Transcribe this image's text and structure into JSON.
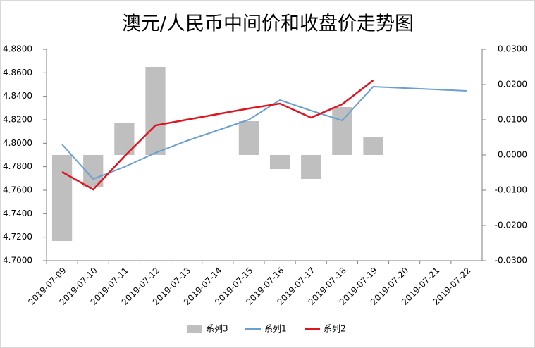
{
  "chart_data": {
    "type": "combo",
    "title": "澳元/人民币中间价和收盘价走势图",
    "categories": [
      "2019-07-09",
      "2019-07-10",
      "2019-07-11",
      "2019-07-12",
      "2019-07-13",
      "2019-07-14",
      "2019-07-15",
      "2019-07-16",
      "2019-07-17",
      "2019-07-18",
      "2019-07-19",
      "2019-07-20",
      "2019-07-21",
      "2019-07-22"
    ],
    "ylim": [
      4.7,
      4.88
    ],
    "yticks": [
      {
        "value": 4.88,
        "label": "4.8800"
      },
      {
        "value": 4.86,
        "label": "4.8600"
      },
      {
        "value": 4.84,
        "label": "4.8400"
      },
      {
        "value": 4.82,
        "label": "4.8200"
      },
      {
        "value": 4.8,
        "label": "4.8000"
      },
      {
        "value": 4.78,
        "label": "4.7800"
      },
      {
        "value": 4.76,
        "label": "4.7600"
      },
      {
        "value": 4.74,
        "label": "4.7400"
      },
      {
        "value": 4.72,
        "label": "4.7200"
      },
      {
        "value": 4.7,
        "label": "4.7000"
      }
    ],
    "y2lim": [
      -0.03,
      0.03
    ],
    "y2ticks": [
      {
        "value": 0.03,
        "label": "0.0300"
      },
      {
        "value": 0.02,
        "label": "0.0200"
      },
      {
        "value": 0.01,
        "label": "0.0100"
      },
      {
        "value": 0,
        "label": "0.0000"
      },
      {
        "value": -0.01,
        "label": "-0.0100"
      },
      {
        "value": -0.02,
        "label": "-0.0200"
      },
      {
        "value": -0.03,
        "label": "-0.0300"
      }
    ],
    "series": [
      {
        "name": "系列3",
        "type": "bar",
        "axis": "y2",
        "color": "#bfbfbf",
        "values": [
          -0.0244,
          -0.0092,
          0.009,
          0.025,
          null,
          null,
          0.0096,
          -0.004,
          -0.0068,
          0.0136,
          0.0052,
          null,
          null,
          null
        ]
      },
      {
        "name": "系列1",
        "type": "line",
        "color": "#6a9fcf",
        "values": [
          4.799,
          4.7696,
          4.7798,
          4.7918,
          4.802,
          4.811,
          4.82,
          4.8368,
          4.8278,
          4.8194,
          4.8482,
          4.847,
          4.8458,
          4.8446
        ]
      },
      {
        "name": "系列2",
        "type": "line",
        "color": "#e0141e",
        "values": [
          4.7756,
          4.7606,
          4.7888,
          4.8152,
          4.82,
          4.8248,
          4.8296,
          4.8338,
          4.8218,
          4.8332,
          4.8536,
          null,
          null,
          null
        ]
      }
    ]
  }
}
